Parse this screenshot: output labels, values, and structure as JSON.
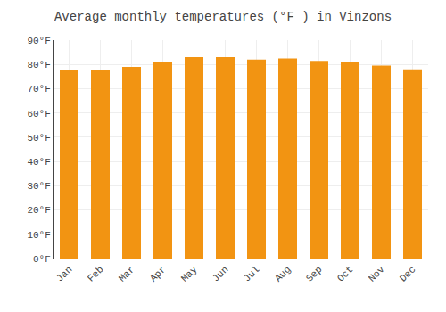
{
  "chart_data": {
    "type": "bar",
    "title": "Average monthly temperatures (°F ) in Vinzons",
    "categories": [
      "Jan",
      "Feb",
      "Mar",
      "Apr",
      "May",
      "Jun",
      "Jul",
      "Aug",
      "Sep",
      "Oct",
      "Nov",
      "Dec"
    ],
    "values": [
      77.5,
      77.5,
      79.0,
      81.0,
      83.0,
      83.0,
      82.0,
      82.5,
      81.5,
      81.0,
      79.5,
      78.0
    ],
    "color": "#f29412",
    "ylim": [
      0,
      90
    ],
    "yticks": [
      {
        "value": 0,
        "label": "0°F"
      },
      {
        "value": 10,
        "label": "10°F"
      },
      {
        "value": 20,
        "label": "20°F"
      },
      {
        "value": 30,
        "label": "30°F"
      },
      {
        "value": 40,
        "label": "40°F"
      },
      {
        "value": 50,
        "label": "50°F"
      },
      {
        "value": 60,
        "label": "60°F"
      },
      {
        "value": 70,
        "label": "70°F"
      },
      {
        "value": 80,
        "label": "80°F"
      },
      {
        "value": 90,
        "label": "90°F"
      }
    ],
    "grid": true
  }
}
